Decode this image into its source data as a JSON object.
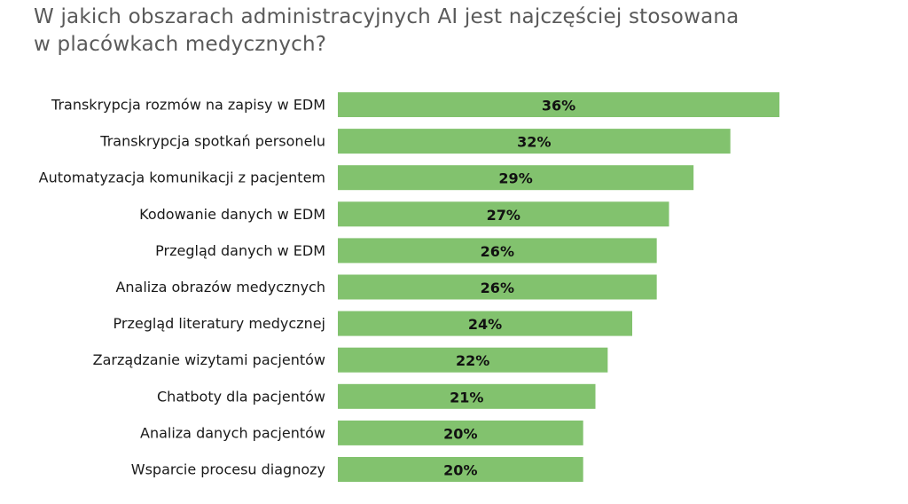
{
  "chart_data": {
    "type": "bar",
    "orientation": "horizontal",
    "title_lines": [
      "W jakich obszarach administracyjnych AI jest najczęściej stosowana",
      "w placówkach medycznych?"
    ],
    "categories": [
      "Transkrypcja rozmów na zapisy w EDM",
      "Transkrypcja spotkań personelu",
      "Automatyzacja komunikacji z pacjentem",
      "Kodowanie danych w EDM",
      "Przegląd danych w EDM",
      "Analiza obrazów medycznych",
      "Przegląd literatury medycznej",
      "Zarządzanie wizytami pacjentów",
      "Chatboty dla pacjentów",
      "Analiza danych pacjentów",
      "Wsparcie procesu diagnozy"
    ],
    "values": [
      36,
      32,
      29,
      27,
      26,
      26,
      24,
      22,
      21,
      20,
      20
    ],
    "value_labels": [
      "36%",
      "32%",
      "29%",
      "27%",
      "26%",
      "26%",
      "24%",
      "22%",
      "21%",
      "20%",
      "20%"
    ],
    "xlim": [
      0,
      36
    ],
    "grid": false,
    "bar_color": "#82c26e"
  }
}
